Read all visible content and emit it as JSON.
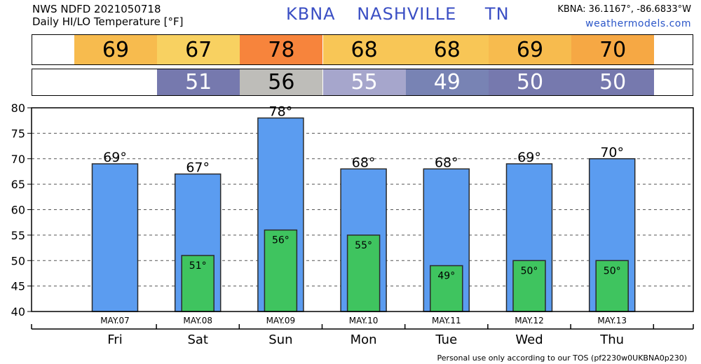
{
  "header": {
    "line1": "NWS NDFD 2021050718",
    "line2": "Daily HI/LO Temperature [°F]",
    "station": "KBNA",
    "city": "NASHVILLE",
    "state": "TN",
    "coords": "KBNA: 36.1167°, -86.6833°W",
    "site": "weathermodels.com"
  },
  "footer": "Personal use only according to our TOS (pf2230w0UKBNA0p230)",
  "colors": {
    "hi_strip": [
      "#f7bb4e",
      "#f8d161",
      "#f7843c",
      "#f8c656",
      "#f8c656",
      "#f7bb4e",
      "#f6a844"
    ],
    "lo_strip": [
      "#7679ae",
      "#bebdb9",
      "#a6a6cc",
      "#7883b4",
      "#7679ae",
      "#7679ae"
    ],
    "hi_bar": "#5b9cf0",
    "lo_bar": "#3fc45f"
  },
  "chart_data": {
    "type": "bar",
    "categories": [
      "Fri",
      "Sat",
      "Sun",
      "Mon",
      "Tue",
      "Wed",
      "Thu"
    ],
    "dates": [
      "MAY.07",
      "MAY.08",
      "MAY.09",
      "MAY.10",
      "MAY.11",
      "MAY.12",
      "MAY.13"
    ],
    "series": [
      {
        "values": [
          69,
          67,
          78,
          68,
          68,
          69,
          70
        ]
      },
      {
        "values": [
          null,
          51,
          56,
          55,
          49,
          50,
          50
        ]
      }
    ],
    "hi_labels": [
      "69°",
      "67°",
      "78°",
      "68°",
      "68°",
      "69°",
      "70°"
    ],
    "lo_labels": [
      "",
      "51°",
      "56°",
      "55°",
      "49°",
      "50°",
      "50°"
    ],
    "ylim": [
      40,
      80
    ],
    "yticks": [
      "40",
      "45",
      "50",
      "55",
      "60",
      "65",
      "70",
      "75",
      "80"
    ],
    "grid": true
  }
}
